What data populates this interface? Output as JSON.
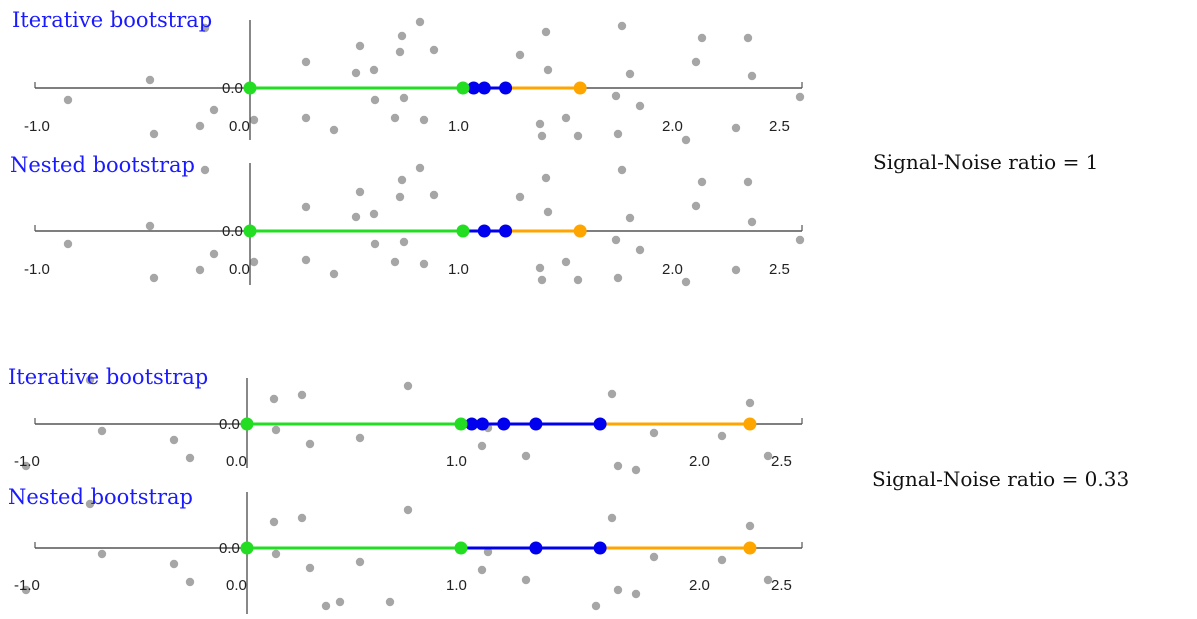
{
  "figure": {
    "groups": [
      {
        "ratio_label": "Signal-Noise ratio = 1",
        "panels": [
          {
            "title": "Iterative bootstrap",
            "axis": {
              "origin_label": "0.0",
              "tick_labels": [
                "-1.0",
                "0.0",
                "1.0",
                "2.0",
                "2.5"
              ]
            },
            "green": [
              0.0,
              1.0
            ],
            "blue": [
              1.0,
              1.05,
              1.1,
              1.2
            ],
            "orange": [
              1.2,
              1.55
            ]
          },
          {
            "title": "Nested bootstrap",
            "axis": {
              "origin_label": "0.0",
              "tick_labels": [
                "-1.0",
                "0.0",
                "1.0",
                "2.0",
                "2.5"
              ]
            },
            "green": [
              0.0,
              1.0
            ],
            "blue": [
              1.0,
              1.1,
              1.2
            ],
            "orange": [
              1.2,
              1.55
            ]
          }
        ]
      },
      {
        "ratio_label": "Signal-Noise ratio = 0.33",
        "panels": [
          {
            "title": "Iterative bootstrap",
            "axis": {
              "origin_label": "0.0",
              "tick_labels": [
                "-1.0",
                "0.0",
                "1.0",
                "2.0",
                "2.5"
              ]
            },
            "green": [
              0.0,
              1.0
            ],
            "blue": [
              1.0,
              1.05,
              1.1,
              1.2,
              1.35,
              1.65
            ],
            "orange": [
              1.65,
              2.35
            ]
          },
          {
            "title": "Nested bootstrap",
            "axis": {
              "origin_label": "0.0",
              "tick_labels": [
                "-1.0",
                "0.0",
                "1.0",
                "2.0",
                "2.5"
              ]
            },
            "green": [
              0.0,
              1.0
            ],
            "blue": [
              1.0,
              1.35,
              1.65
            ],
            "orange": [
              1.65,
              2.35
            ]
          }
        ]
      }
    ],
    "colors": {
      "green": "#22dd22",
      "blue": "#0000ee",
      "orange": "#ffa500",
      "noise": "#a6a6a6",
      "axis": "#555555"
    }
  }
}
